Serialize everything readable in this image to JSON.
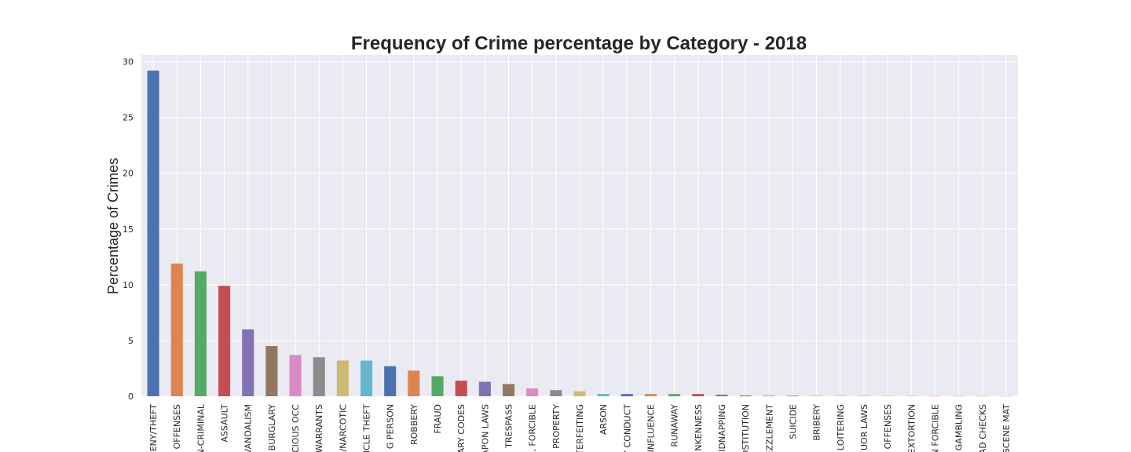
{
  "chart_data": {
    "type": "bar",
    "title": "Frequency of Crime percentage by Category - 2018",
    "xlabel": "",
    "ylabel": "Percentage of Crimes",
    "ylim": [
      0,
      30.6
    ],
    "yticks": [
      "0",
      "5",
      "10",
      "15",
      "20",
      "25",
      "30"
    ],
    "grid": true,
    "categories": [
      "LARCENY/THEFT",
      "OTHER OFFENSES",
      "NON-CRIMINAL",
      "ASSAULT",
      "VANDALISM",
      "BURGLARY",
      "SUSPICIOUS OCC",
      "WARRANTS",
      "DRUG/NARCOTIC",
      "VEHICLE THEFT",
      "MISSING PERSON",
      "ROBBERY",
      "FRAUD",
      "SECONDARY CODES",
      "WEAPON LAWS",
      "TRESPASS",
      "SEX OFFENSES, FORCIBLE",
      "STOLEN PROPERTY",
      "FORGERY/COUNTERFEITING",
      "ARSON",
      "DISORDERLY CONDUCT",
      "DRIVING UNDER THE INFLUENCE",
      "RUNAWAY",
      "DRUNKENNESS",
      "KIDNAPPING",
      "PROSTITUTION",
      "EMBEZZLEMENT",
      "SUICIDE",
      "BRIBERY",
      "LOITERING",
      "LIQUOR LAWS",
      "FAMILY OFFENSES",
      "EXTORTION",
      "SEX OFFENSES, NON FORCIBLE",
      "GAMBLING",
      "BAD CHECKS",
      "PORNOGRAPHY/OBSCENE MAT"
    ],
    "visible_tick_labels": [
      "ENY/THEFT",
      "OFFENSES",
      "N-CRIMINAL",
      "ASSAULT",
      "VANDALISM",
      "BURGLARY",
      "CIOUS OCC",
      "WARRANTS",
      "/NARCOTIC",
      "ICLE THEFT",
      "G PERSON",
      "ROBBERY",
      "FRAUD",
      "ARY CODES",
      "APON LAWS",
      "TRESPASS",
      ", FORCIBLE",
      "PROPERTY",
      "TERFEITING",
      "ARSON",
      "Y CONDUCT",
      "INFLUENCE",
      "RUNAWAY",
      "NKENNESS",
      "IDNAPPING",
      "OSTITUTION",
      "EZZLEMENT",
      "SUICIDE",
      "BRIBERY",
      "LOITERING",
      "UOR LAWS",
      "OFFENSES",
      "EXTORTION",
      "N FORCIBLE",
      "GAMBLING",
      "AD CHECKS",
      "SCENE MAT"
    ],
    "values": [
      29.2,
      11.9,
      11.2,
      9.9,
      6.0,
      4.5,
      3.7,
      3.5,
      3.2,
      3.2,
      2.7,
      2.3,
      1.8,
      1.4,
      1.3,
      1.1,
      0.7,
      0.55,
      0.45,
      0.2,
      0.2,
      0.2,
      0.2,
      0.2,
      0.15,
      0.08,
      0.08,
      0.06,
      0.05,
      0.03,
      0.02,
      0.02,
      0.02,
      0.01,
      0.01,
      0.01,
      0.005
    ],
    "palette": [
      "#4c72b0",
      "#dd8452",
      "#55a868",
      "#c44e52",
      "#8172b3",
      "#937860",
      "#da8bc3",
      "#8c8c8c",
      "#ccb974",
      "#64b5cd"
    ],
    "background_color": "#eaeaf2",
    "grid_color": "#ffffff"
  }
}
